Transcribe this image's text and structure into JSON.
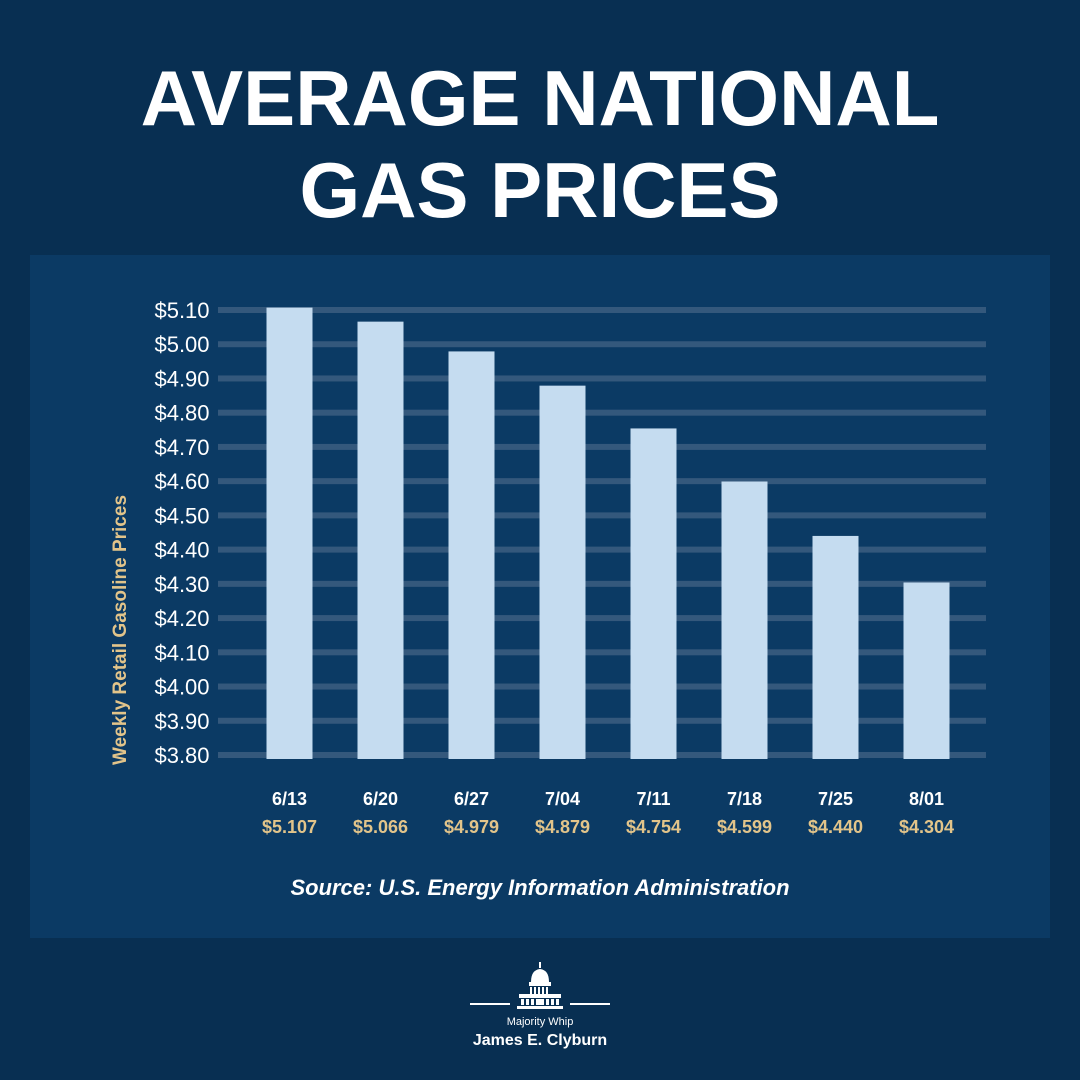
{
  "header": {
    "title_line1": "AVERAGE NATIONAL",
    "title_line2": "GAS PRICES"
  },
  "chart_data": {
    "type": "bar",
    "title": "AVERAGE NATIONAL GAS PRICES",
    "ylabel": "Weekly Retail Gasoline Prices",
    "xlabel": "",
    "ylim": [
      3.8,
      5.1
    ],
    "yticks": [
      5.1,
      5.0,
      4.9,
      4.8,
      4.7,
      4.6,
      4.5,
      4.4,
      4.3,
      4.2,
      4.1,
      4.0,
      3.9,
      3.8
    ],
    "ytick_labels": [
      "$5.10",
      "$5.00",
      "$4.90",
      "$4.80",
      "$4.70",
      "$4.60",
      "$4.50",
      "$4.40",
      "$4.30",
      "$4.20",
      "$4.10",
      "$4.00",
      "$3.90",
      "$3.80"
    ],
    "categories": [
      "6/13",
      "6/20",
      "6/27",
      "7/04",
      "7/11",
      "7/18",
      "7/25",
      "8/01"
    ],
    "values": [
      5.107,
      5.066,
      4.979,
      4.879,
      4.754,
      4.599,
      4.44,
      4.304
    ],
    "value_labels": [
      "$5.107",
      "$5.066",
      "$4.979",
      "$4.879",
      "$4.754",
      "$4.599",
      "$4.440",
      "$4.304"
    ],
    "grid": true,
    "colors": {
      "bar": "#c5dcf0",
      "grid": "#34587c",
      "axis_text": "#ffffff",
      "ylabel": "#e2c48a",
      "value_label": "#e2c48a"
    }
  },
  "source": "Source: U.S. Energy Information Administration",
  "footer": {
    "role": "Majority Whip",
    "name": "James E. Clyburn",
    "logo_icon": "capitol-dome-icon"
  }
}
